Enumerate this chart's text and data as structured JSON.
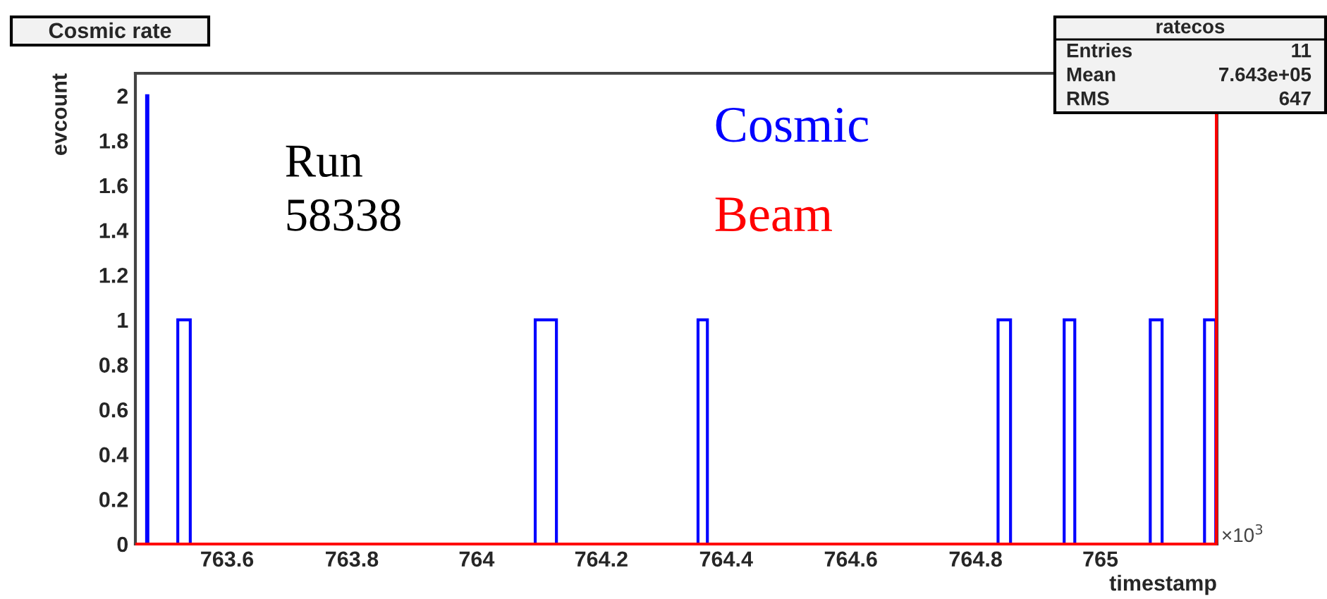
{
  "chart_data": {
    "type": "histogram",
    "title": "Cosmic rate",
    "xlabel": "timestamp",
    "ylabel": "evcount",
    "series": [
      {
        "name": "Cosmic",
        "color": "#0000ff",
        "values": [
          0,
          2,
          0,
          1,
          0,
          1,
          0,
          1,
          0,
          1,
          0,
          1,
          0,
          1,
          0,
          1
        ]
      },
      {
        "name": "Beam",
        "color": "#ff0000",
        "values": [
          0,
          0,
          0,
          0,
          0,
          0,
          0,
          0,
          0,
          0,
          0,
          0,
          0,
          0,
          0,
          0
        ]
      }
    ],
    "bins": [
      763.453,
      763.471,
      763.473,
      763.521,
      763.541,
      764.094,
      764.128,
      764.355,
      764.37,
      764.836,
      764.856,
      764.942,
      764.959,
      765.08,
      765.099,
      765.167,
      765.185
    ],
    "ref_lines": [
      {
        "axis": "x",
        "value": 765.186,
        "color": "#ff0000"
      }
    ],
    "xlim": [
      763.453,
      765.187
    ],
    "xticks": [
      763.6,
      763.8,
      764,
      764.2,
      764.4,
      764.6,
      764.8,
      765
    ],
    "ylim": [
      0,
      2.1
    ],
    "yticks": [
      0,
      0.2,
      0.4,
      0.6,
      0.8,
      1,
      1.2,
      1.4,
      1.6,
      1.8,
      2
    ],
    "grid": false,
    "legend": false,
    "annotations": [
      "Run\n58338",
      "×10$^{3}$",
      "ratecos",
      "Entries",
      "11",
      "Mean",
      "7.643e+05",
      "RMS",
      "647"
    ]
  }
}
